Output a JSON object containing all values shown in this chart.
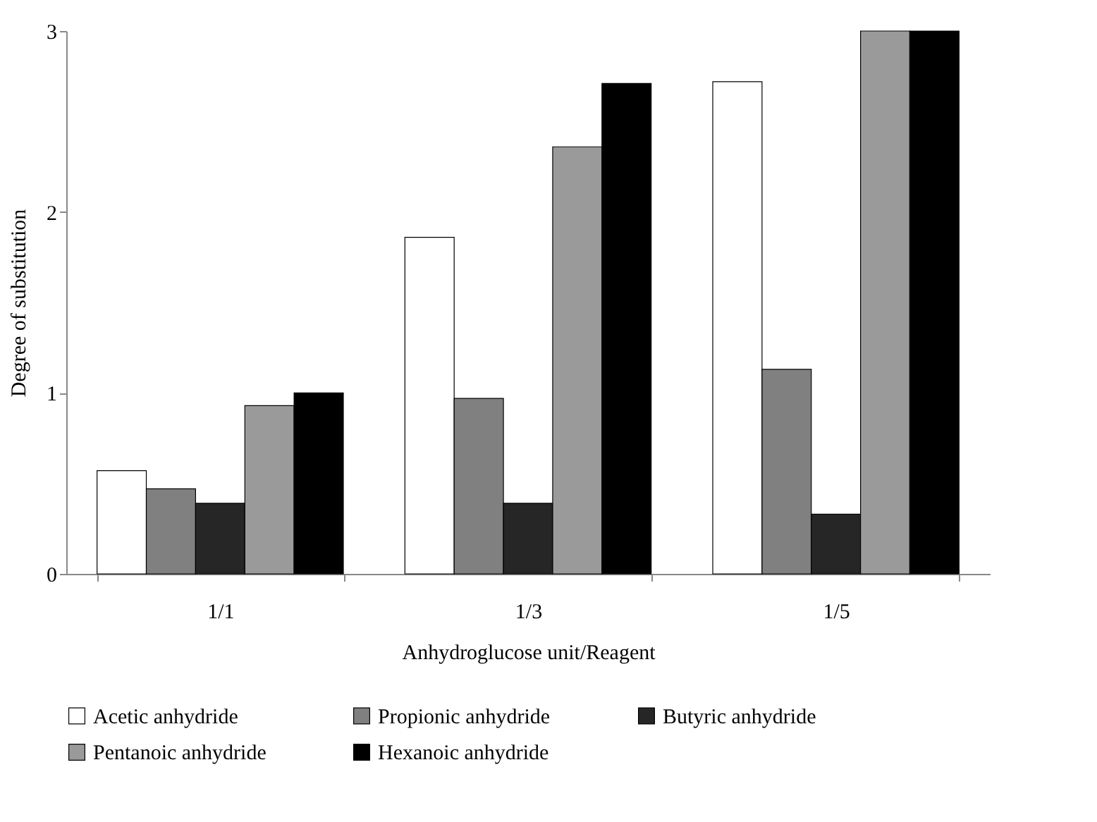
{
  "chart_data": {
    "type": "bar",
    "xlabel": "Anhydroglucose unit/Reagent",
    "ylabel": "Degree of substitution",
    "categories": [
      "1/1",
      "1/3",
      "1/5"
    ],
    "series": [
      {
        "name": "Acetic anhydride",
        "color": "#ffffff",
        "values": [
          0.57,
          1.86,
          2.72
        ]
      },
      {
        "name": "Propionic anhydride",
        "color": "#808080",
        "values": [
          0.47,
          0.97,
          1.13
        ]
      },
      {
        "name": "Butyric anhydride",
        "color": "#262626",
        "values": [
          0.39,
          0.39,
          0.33
        ]
      },
      {
        "name": "Pentanoic anhydride",
        "color": "#9a9a9a",
        "values": [
          0.93,
          2.36,
          3.0
        ]
      },
      {
        "name": "Hexanoic anhydride",
        "color": "#000000",
        "values": [
          1.0,
          2.71,
          3.0
        ]
      }
    ],
    "ylim": [
      0,
      3
    ],
    "yticks": [
      0,
      1,
      2,
      3
    ],
    "grid": false,
    "legend": "bottom"
  }
}
